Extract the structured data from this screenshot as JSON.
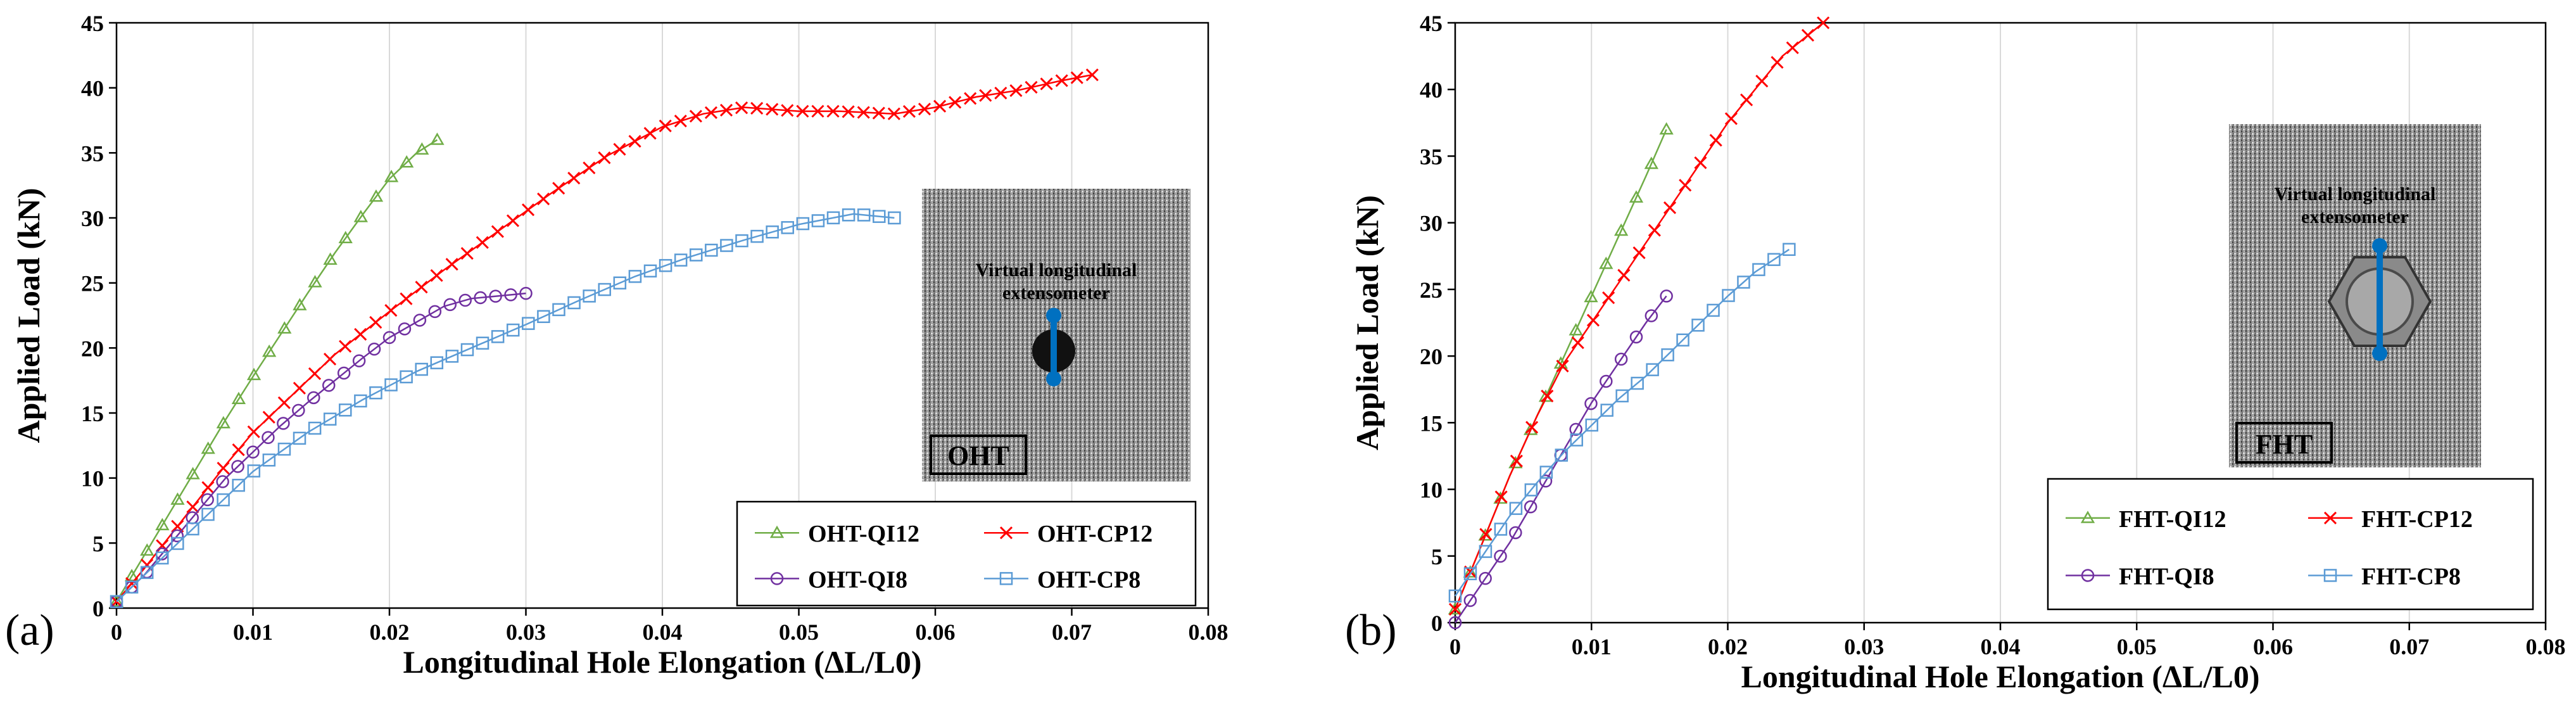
{
  "chart_data": [
    {
      "type": "line",
      "panel_label": "(a)",
      "xlabel": "Longitudinal Hole Elongation (ΔL/L0)",
      "ylabel": "Applied Load (kN)",
      "xlim": [
        0,
        0.08
      ],
      "ylim": [
        0,
        45
      ],
      "xticks": [
        0,
        0.01,
        0.02,
        0.03,
        0.04,
        0.05,
        0.06,
        0.07,
        0.08
      ],
      "xtick_labels": [
        "0",
        "0.01",
        "0.02",
        "0.03",
        "0.04",
        "0.05",
        "0.06",
        "0.07",
        "0.08"
      ],
      "yticks": [
        0,
        5,
        10,
        15,
        20,
        25,
        30,
        35,
        40,
        45
      ],
      "ytick_labels": [
        "0",
        "5",
        "10",
        "15",
        "20",
        "25",
        "30",
        "35",
        "40",
        "45"
      ],
      "grid": "vertical",
      "legend_position": "bottom-right",
      "inset": {
        "caption": "Virtual longitudinal extensometer",
        "tag": "OHT",
        "feature": "open-hole"
      },
      "series": [
        {
          "name": "OHT-QI12",
          "color": "#70AD47",
          "marker": "triangle",
          "x": [
            0,
            0.002,
            0.004,
            0.006,
            0.008,
            0.01,
            0.012,
            0.014,
            0.016,
            0.018,
            0.02,
            0.022,
            0.0235
          ],
          "y": [
            0.5,
            4,
            7.5,
            11,
            14.5,
            17.8,
            21,
            24.2,
            27.3,
            30.2,
            33,
            35,
            36
          ]
        },
        {
          "name": "OHT-CP12",
          "color": "#FF0000",
          "marker": "x",
          "x": [
            0,
            0.002,
            0.005,
            0.008,
            0.01,
            0.013,
            0.016,
            0.02,
            0.024,
            0.028,
            0.032,
            0.036,
            0.04,
            0.043,
            0.046,
            0.05,
            0.053,
            0.057,
            0.06,
            0.063,
            0.066,
            0.069,
            0.0715
          ],
          "y": [
            0.5,
            3,
            7,
            11,
            13.5,
            16.5,
            19.5,
            22.8,
            26,
            29,
            32,
            34.8,
            37,
            38,
            38.5,
            38.2,
            38.2,
            38,
            38.5,
            39.3,
            39.8,
            40.5,
            41
          ]
        },
        {
          "name": "OHT-QI8",
          "color": "#7030A0",
          "marker": "circle",
          "x": [
            0,
            0.002,
            0.004,
            0.006,
            0.008,
            0.01,
            0.012,
            0.014,
            0.016,
            0.018,
            0.02,
            0.022,
            0.024,
            0.026,
            0.028,
            0.03
          ],
          "y": [
            0.5,
            2.5,
            5,
            7.5,
            10,
            12,
            14,
            15.8,
            17.5,
            19.2,
            20.8,
            22,
            23.2,
            23.8,
            24,
            24.2
          ]
        },
        {
          "name": "OHT-CP8",
          "color": "#5B9BD5",
          "marker": "square",
          "x": [
            0,
            0.002,
            0.004,
            0.006,
            0.008,
            0.01,
            0.014,
            0.018,
            0.022,
            0.026,
            0.03,
            0.034,
            0.038,
            0.042,
            0.046,
            0.05,
            0.054,
            0.057
          ],
          "y": [
            0.5,
            2.5,
            4.5,
            6.5,
            8.5,
            10.5,
            13.5,
            16,
            18.2,
            20,
            21.8,
            23.7,
            25.5,
            27,
            28.3,
            29.5,
            30.3,
            30
          ]
        }
      ]
    },
    {
      "type": "line",
      "panel_label": "(b)",
      "xlabel": "Longitudinal Hole Elongation (ΔL/L0)",
      "ylabel": "Applied Load (kN)",
      "xlim": [
        0,
        0.08
      ],
      "ylim": [
        0,
        45
      ],
      "xticks": [
        0,
        0.01,
        0.02,
        0.03,
        0.04,
        0.05,
        0.06,
        0.07,
        0.08
      ],
      "xtick_labels": [
        "0",
        "0.01",
        "0.02",
        "0.03",
        "0.04",
        "0.05",
        "0.06",
        "0.07",
        "0.08"
      ],
      "yticks": [
        0,
        5,
        10,
        15,
        20,
        25,
        30,
        35,
        40,
        45
      ],
      "ytick_labels": [
        "0",
        "5",
        "10",
        "15",
        "20",
        "25",
        "30",
        "35",
        "40",
        "45"
      ],
      "grid": "vertical",
      "legend_position": "bottom-right",
      "inset": {
        "caption": "Virtual longitudinal extensometer",
        "tag": "FHT",
        "feature": "filled-hole-bolt"
      },
      "series": [
        {
          "name": "FHT-QI12",
          "color": "#70AD47",
          "marker": "triangle",
          "x": [
            0,
            0.002,
            0.004,
            0.006,
            0.008,
            0.01,
            0.012,
            0.014,
            0.0155
          ],
          "y": [
            1,
            6,
            11,
            15.5,
            20,
            24.5,
            29,
            33.5,
            37
          ]
        },
        {
          "name": "FHT-CP12",
          "color": "#FF0000",
          "marker": "x",
          "x": [
            0,
            0.002,
            0.004,
            0.006,
            0.008,
            0.01,
            0.012,
            0.014,
            0.016,
            0.018,
            0.02,
            0.022,
            0.024,
            0.027
          ],
          "y": [
            1,
            6,
            11,
            15.5,
            19.5,
            22.5,
            25.5,
            28.5,
            31.5,
            34.5,
            37.5,
            40,
            42.5,
            45
          ]
        },
        {
          "name": "FHT-QI8",
          "color": "#7030A0",
          "marker": "circle",
          "x": [
            0,
            0.002,
            0.004,
            0.006,
            0.008,
            0.01,
            0.012,
            0.014,
            0.0155
          ],
          "y": [
            0,
            3,
            6,
            9.5,
            13,
            16.5,
            19.5,
            22.5,
            24.5
          ]
        },
        {
          "name": "FHT-CP8",
          "color": "#5B9BD5",
          "marker": "square",
          "x": [
            0,
            0.002,
            0.004,
            0.006,
            0.008,
            0.01,
            0.012,
            0.014,
            0.016,
            0.018,
            0.02,
            0.022,
            0.0245
          ],
          "y": [
            2,
            5,
            8,
            10.5,
            12.8,
            14.8,
            16.8,
            18.5,
            20.5,
            22.5,
            24.5,
            26.3,
            28
          ]
        }
      ]
    }
  ]
}
